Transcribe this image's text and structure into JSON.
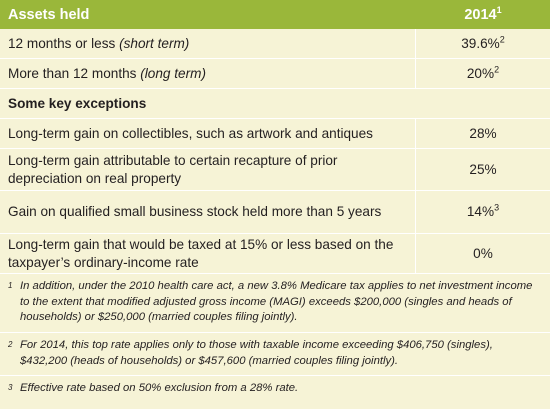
{
  "header": {
    "col1": "Assets held",
    "col2": "2014",
    "col2_sup": "1"
  },
  "rows_top": [
    {
      "text": "12 months or less ",
      "italic": "(short term)",
      "rate": "39.6%",
      "sup": "2"
    },
    {
      "text": "More than 12 months ",
      "italic": "(long term)",
      "rate": "20%",
      "sup": "2"
    }
  ],
  "subheading": "Some key exceptions",
  "exceptions": [
    {
      "text": "Long-term gain on collectibles, such as artwork and antiques",
      "rate": "28%",
      "sup": ""
    },
    {
      "text": "Long-term gain attributable to certain recapture of prior depreciation on real property",
      "rate": "25%",
      "sup": ""
    },
    {
      "text": "Gain on qualified small business stock held more than 5 years",
      "rate": "14%",
      "sup": "3"
    },
    {
      "text": "Long-term gain that would be taxed at 15% or less based on the taxpayer’s ordinary-income rate",
      "rate": "0%",
      "sup": ""
    }
  ],
  "footnotes": [
    {
      "mark": "1",
      "text": "In addition, under the 2010 health care act, a new 3.8% Medicare tax applies to net investment income to the extent that modified adjusted gross income (MAGI) exceeds $200,000 (singles and heads of households) or $250,000 (married couples filing jointly)."
    },
    {
      "mark": "2",
      "text": "For 2014, this top rate applies only to those with taxable income exceeding $406,750 (singles), $432,200 (heads of households) or $457,600 (married couples filing jointly)."
    },
    {
      "mark": "3",
      "text": "Effective rate based on 50% exclusion from a 28% rate."
    }
  ]
}
